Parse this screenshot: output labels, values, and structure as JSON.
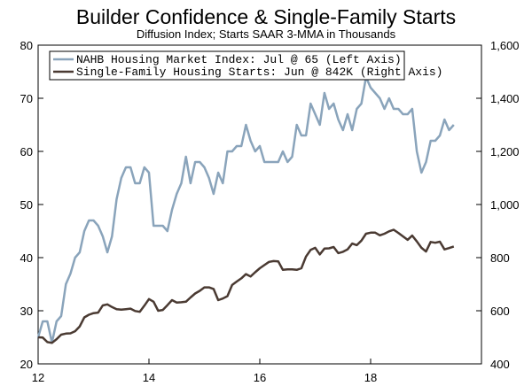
{
  "chart_data": {
    "type": "line",
    "title": "Builder Confidence & Single-Family Starts",
    "subtitle": "Diffusion Index; Starts SAAR 3-MMA in Thousands",
    "x_axis": {
      "range": [
        2012.0,
        2020.0
      ],
      "ticks": [
        12,
        14,
        16,
        18
      ],
      "tick_labels": [
        "12",
        "14",
        "16",
        "18"
      ]
    },
    "y_left": {
      "range": [
        20,
        80
      ],
      "ticks": [
        20,
        30,
        40,
        50,
        60,
        70,
        80
      ],
      "tick_labels": [
        "20",
        "30",
        "40",
        "50",
        "60",
        "70",
        "80"
      ]
    },
    "y_right": {
      "range": [
        400,
        1600
      ],
      "ticks": [
        400,
        600,
        800,
        1000,
        1200,
        1400,
        1600
      ],
      "tick_labels": [
        "400",
        "600",
        "800",
        "1,000",
        "1,200",
        "1,400",
        "1,600"
      ]
    },
    "legend_position": "top-left",
    "x_start": 2012.0,
    "x_step_months": 1,
    "series": [
      {
        "name": "NAHB Housing Market Index: Jul @ 65 (Left Axis)",
        "axis": "left",
        "color": "#8AA4BB",
        "values": [
          25,
          28,
          28,
          24,
          28,
          29,
          35,
          37,
          40,
          41,
          45,
          47,
          47,
          46,
          44,
          41,
          44,
          51,
          55,
          57,
          57,
          54,
          54,
          57,
          56,
          46,
          46,
          46,
          45,
          49,
          52,
          54,
          59,
          54,
          58,
          58,
          57,
          55,
          52,
          56,
          54,
          60,
          60,
          61,
          61,
          65,
          62,
          60,
          61,
          58,
          58,
          58,
          58,
          60,
          58,
          59,
          65,
          63,
          63,
          69,
          67,
          65,
          71,
          68,
          69,
          66,
          64,
          67,
          64,
          68,
          69,
          74,
          72,
          71,
          70,
          68,
          70,
          68,
          68,
          67,
          67,
          68,
          60,
          56,
          58,
          62,
          62,
          63,
          66,
          64,
          65
        ]
      },
      {
        "name": "Single-Family Housing Starts: Jun @ 842K (Right Axis)",
        "axis": "right",
        "color": "#4A3A32",
        "values": [
          500,
          499,
          482,
          479,
          493,
          510,
          514,
          515,
          523,
          541,
          575,
          585,
          591,
          593,
          620,
          624,
          614,
          606,
          604,
          606,
          608,
          599,
          596,
          619,
          644,
          634,
          600,
          603,
          621,
          640,
          631,
          632,
          634,
          650,
          665,
          675,
          688,
          688,
          682,
          640,
          646,
          655,
          697,
          710,
          722,
          738,
          729,
          745,
          760,
          772,
          784,
          787,
          786,
          754,
          756,
          756,
          754,
          760,
          804,
          829,
          837,
          812,
          834,
          835,
          840,
          817,
          822,
          831,
          853,
          847,
          864,
          890,
          894,
          894,
          884,
          890,
          899,
          905,
          893,
          880,
          867,
          883,
          861,
          837,
          823,
          859,
          856,
          860,
          831,
          836,
          842
        ]
      }
    ]
  }
}
